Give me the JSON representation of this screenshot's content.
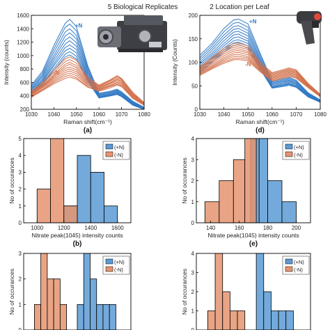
{
  "figure": {
    "title_left": "5 Biological Replicates",
    "title_right": "2 Location per Leaf"
  },
  "colors": {
    "plus_n": "#2f78c4",
    "minus_n": "#d2704a",
    "plus_n_bar": "#5b9bd5",
    "minus_n_bar": "#e59470",
    "overlap_bar": "#8c5a4f"
  },
  "icons": [
    "spectrometer-icon",
    "handheld-probe-icon"
  ],
  "chart_data": [
    {
      "id": "a",
      "type": "line",
      "panel_label": "(a)",
      "xlabel": "Raman shift(cm⁻¹)",
      "ylabel": "Intensity (counts)",
      "xlim": [
        1030,
        1080
      ],
      "ylim": [
        200,
        1600
      ],
      "xticks": [
        1030,
        1040,
        1050,
        1060,
        1070,
        1080
      ],
      "yticks": [
        200,
        400,
        600,
        800,
        1000,
        1200,
        1400,
        1600
      ],
      "annotations": [
        {
          "text": "+N",
          "x": 1051,
          "y": 1420,
          "series": "+N"
        },
        {
          "text": "-N",
          "x": 1041,
          "y": 720,
          "series": "-N"
        }
      ],
      "x": [
        1030,
        1035,
        1040,
        1045,
        1047,
        1050,
        1055,
        1060,
        1065,
        1068,
        1070,
        1075,
        1080
      ],
      "series": [
        {
          "group": "+N",
          "values": [
            560,
            770,
            1150,
            1480,
            1540,
            1430,
            850,
            440,
            470,
            500,
            460,
            320,
            230
          ]
        },
        {
          "group": "+N",
          "values": [
            540,
            740,
            1100,
            1420,
            1470,
            1370,
            820,
            430,
            460,
            490,
            450,
            310,
            220
          ]
        },
        {
          "group": "+N",
          "values": [
            520,
            710,
            1050,
            1350,
            1400,
            1300,
            790,
            420,
            450,
            480,
            440,
            300,
            220
          ]
        },
        {
          "group": "+N",
          "values": [
            500,
            690,
            1000,
            1290,
            1340,
            1250,
            760,
            410,
            440,
            470,
            430,
            300,
            210
          ]
        },
        {
          "group": "+N",
          "values": [
            490,
            660,
            960,
            1230,
            1280,
            1190,
            730,
            400,
            430,
            460,
            420,
            290,
            210
          ]
        },
        {
          "group": "+N",
          "values": [
            470,
            640,
            920,
            1170,
            1220,
            1140,
            700,
            390,
            420,
            450,
            410,
            280,
            210
          ]
        },
        {
          "group": "+N",
          "values": [
            460,
            620,
            880,
            1120,
            1160,
            1090,
            680,
            380,
            410,
            440,
            400,
            280,
            200
          ]
        },
        {
          "group": "+N",
          "values": [
            450,
            600,
            850,
            1070,
            1110,
            1040,
            660,
            380,
            410,
            440,
            400,
            270,
            200
          ]
        },
        {
          "group": "+N",
          "values": [
            440,
            580,
            810,
            1020,
            1060,
            990,
            640,
            370,
            400,
            430,
            390,
            270,
            200
          ]
        },
        {
          "group": "+N",
          "values": [
            430,
            570,
            780,
            980,
            1010,
            950,
            620,
            370,
            400,
            420,
            390,
            260,
            200
          ]
        },
        {
          "group": "-N",
          "values": [
            470,
            600,
            780,
            950,
            980,
            930,
            680,
            560,
            640,
            700,
            660,
            450,
            300
          ]
        },
        {
          "group": "-N",
          "values": [
            460,
            580,
            750,
            910,
            940,
            890,
            660,
            550,
            630,
            690,
            650,
            440,
            300
          ]
        },
        {
          "group": "-N",
          "values": [
            450,
            560,
            720,
            870,
            900,
            850,
            640,
            540,
            620,
            670,
            640,
            430,
            290
          ]
        },
        {
          "group": "-N",
          "values": [
            440,
            550,
            700,
            840,
            870,
            820,
            620,
            530,
            600,
            650,
            620,
            420,
            290
          ]
        },
        {
          "group": "-N",
          "values": [
            430,
            540,
            680,
            810,
            830,
            790,
            600,
            520,
            590,
            640,
            610,
            410,
            280
          ]
        },
        {
          "group": "-N",
          "values": [
            420,
            530,
            660,
            780,
            800,
            760,
            590,
            510,
            580,
            620,
            590,
            400,
            280
          ]
        },
        {
          "group": "-N",
          "values": [
            410,
            520,
            640,
            750,
            770,
            730,
            570,
            500,
            560,
            600,
            580,
            390,
            270
          ]
        },
        {
          "group": "-N",
          "values": [
            400,
            500,
            620,
            720,
            740,
            700,
            560,
            490,
            550,
            590,
            560,
            380,
            270
          ]
        },
        {
          "group": "-N",
          "values": [
            390,
            490,
            600,
            690,
            710,
            670,
            540,
            480,
            540,
            570,
            550,
            370,
            260
          ]
        },
        {
          "group": "-N",
          "values": [
            380,
            480,
            580,
            660,
            680,
            650,
            530,
            470,
            520,
            560,
            540,
            360,
            260
          ]
        }
      ]
    },
    {
      "id": "d",
      "type": "line",
      "panel_label": "(d)",
      "xlabel": "Raman shift(cm⁻¹)",
      "ylabel": "Intensity (Counts)",
      "xlim": [
        1030,
        1080
      ],
      "ylim": [
        0,
        200
      ],
      "xticks": [
        1030,
        1040,
        1050,
        1060,
        1070,
        1080
      ],
      "yticks": [
        0,
        50,
        100,
        150,
        200
      ],
      "annotations": [
        {
          "text": "+N",
          "x": 1052,
          "y": 183,
          "series": "+N"
        },
        {
          "text": "-N",
          "x": 1050,
          "y": 92,
          "series": "-N"
        }
      ],
      "x": [
        1030,
        1035,
        1040,
        1044,
        1046,
        1050,
        1055,
        1060,
        1065,
        1067,
        1070,
        1075,
        1080
      ],
      "series": [
        {
          "group": "+N",
          "values": [
            115,
            140,
            172,
            190,
            192,
            182,
            120,
            60,
            65,
            68,
            62,
            35,
            20
          ]
        },
        {
          "group": "+N",
          "values": [
            110,
            135,
            165,
            183,
            185,
            175,
            115,
            58,
            63,
            66,
            60,
            34,
            19
          ]
        },
        {
          "group": "+N",
          "values": [
            105,
            130,
            158,
            176,
            178,
            168,
            110,
            56,
            61,
            64,
            58,
            33,
            18
          ]
        },
        {
          "group": "+N",
          "values": [
            100,
            125,
            152,
            170,
            172,
            162,
            106,
            54,
            59,
            62,
            56,
            32,
            18
          ]
        },
        {
          "group": "+N",
          "values": [
            96,
            120,
            146,
            164,
            166,
            156,
            102,
            52,
            57,
            60,
            54,
            31,
            17
          ]
        },
        {
          "group": "+N",
          "values": [
            92,
            116,
            140,
            158,
            160,
            150,
            98,
            50,
            55,
            58,
            52,
            30,
            17
          ]
        },
        {
          "group": "+N",
          "values": [
            88,
            112,
            135,
            152,
            154,
            145,
            95,
            48,
            53,
            56,
            50,
            29,
            16
          ]
        },
        {
          "group": "+N",
          "values": [
            84,
            108,
            130,
            146,
            148,
            140,
            92,
            47,
            52,
            54,
            49,
            28,
            16
          ]
        },
        {
          "group": "+N",
          "values": [
            80,
            104,
            126,
            141,
            143,
            135,
            89,
            46,
            50,
            53,
            48,
            27,
            15
          ]
        },
        {
          "group": "+N",
          "values": [
            76,
            100,
            122,
            136,
            138,
            130,
            86,
            45,
            49,
            51,
            47,
            26,
            15
          ]
        },
        {
          "group": "-N",
          "values": [
            90,
            110,
            130,
            140,
            141,
            135,
            100,
            78,
            85,
            88,
            84,
            55,
            32
          ]
        },
        {
          "group": "-N",
          "values": [
            88,
            107,
            126,
            136,
            137,
            131,
            97,
            76,
            83,
            86,
            82,
            54,
            31
          ]
        },
        {
          "group": "-N",
          "values": [
            86,
            104,
            122,
            132,
            133,
            127,
            94,
            74,
            81,
            84,
            80,
            53,
            30
          ]
        },
        {
          "group": "-N",
          "values": [
            84,
            101,
            118,
            128,
            129,
            123,
            92,
            72,
            79,
            82,
            78,
            52,
            30
          ]
        },
        {
          "group": "-N",
          "values": [
            82,
            98,
            114,
            124,
            125,
            120,
            90,
            70,
            77,
            80,
            76,
            51,
            29
          ]
        },
        {
          "group": "-N",
          "values": [
            80,
            95,
            110,
            120,
            121,
            116,
            88,
            68,
            75,
            78,
            74,
            50,
            29
          ]
        },
        {
          "group": "-N",
          "values": [
            78,
            92,
            107,
            116,
            117,
            112,
            86,
            66,
            73,
            76,
            72,
            49,
            28
          ]
        },
        {
          "group": "-N",
          "values": [
            76,
            90,
            104,
            112,
            113,
            109,
            84,
            64,
            71,
            74,
            70,
            48,
            28
          ]
        },
        {
          "group": "-N",
          "values": [
            74,
            88,
            101,
            108,
            109,
            106,
            82,
            62,
            69,
            72,
            68,
            47,
            27
          ]
        },
        {
          "group": "-N",
          "values": [
            72,
            86,
            98,
            105,
            106,
            103,
            80,
            60,
            67,
            70,
            66,
            46,
            27
          ]
        }
      ]
    },
    {
      "id": "b",
      "type": "bar",
      "panel_label": "(b)",
      "xlabel": "Nitrate peak(1045) intensity counts",
      "ylabel": "No of occurances",
      "xlim": [
        900,
        1700
      ],
      "ylim": [
        0,
        5
      ],
      "xticks": [
        1000,
        1200,
        1400,
        1600
      ],
      "yticks": [
        0,
        1,
        2,
        3,
        4,
        5
      ],
      "legend": {
        "entries": [
          "(+N)",
          "(-N)"
        ],
        "position": "top-right"
      },
      "series": [
        {
          "name": "(+N)",
          "bins": [
            [
              1200,
              1300,
              1
            ],
            [
              1300,
              1400,
              4
            ],
            [
              1400,
              1500,
              3
            ],
            [
              1500,
              1600,
              1
            ]
          ]
        },
        {
          "name": "(-N)",
          "bins": [
            [
              1000,
              1100,
              2
            ],
            [
              1100,
              1200,
              5
            ],
            [
              1200,
              1300,
              1
            ]
          ]
        }
      ]
    },
    {
      "id": "e",
      "type": "bar",
      "panel_label": "(e)",
      "xlabel": "Nitrate peak(1045) intensity counts",
      "ylabel": "No of occurances",
      "xlim": [
        130,
        210
      ],
      "ylim": [
        0,
        4
      ],
      "xticks": [
        140,
        160,
        180,
        200
      ],
      "yticks": [
        0,
        1,
        2,
        3,
        4
      ],
      "legend": {
        "entries": [
          "(+N)",
          "(-N)"
        ],
        "position": "top-right"
      },
      "series": [
        {
          "name": "(+N)",
          "bins": [
            [
              168,
              174,
              4
            ],
            [
              174,
              180,
              4
            ],
            [
              180,
              190,
              2
            ],
            [
              190,
              200,
              1
            ]
          ]
        },
        {
          "name": "(-N)",
          "bins": [
            [
              136,
              146,
              1
            ],
            [
              146,
              156,
              2
            ],
            [
              156,
              164,
              3
            ],
            [
              164,
              172,
              4
            ]
          ]
        }
      ]
    },
    {
      "id": "c",
      "type": "bar",
      "panel_label": "",
      "xlabel": "",
      "ylabel": "No of occurances",
      "xlim": [
        0,
        20
      ],
      "ylim": [
        0,
        3
      ],
      "xticks": [],
      "yticks": [
        0,
        1,
        2,
        3
      ],
      "legend": {
        "entries": [
          "(+N)",
          "(-N)"
        ],
        "position": "top-right"
      },
      "series": [
        {
          "name": "(+N)",
          "bins": [
            [
              10,
              11.2,
              1
            ],
            [
              11.2,
              12.4,
              3
            ],
            [
              12.4,
              13.6,
              2
            ],
            [
              13.6,
              14.8,
              1
            ],
            [
              14.8,
              16,
              1
            ],
            [
              16,
              17.2,
              1
            ]
          ]
        },
        {
          "name": "(-N)",
          "bins": [
            [
              2,
              3.2,
              1
            ],
            [
              3.2,
              4.4,
              3
            ],
            [
              4.4,
              5.6,
              2
            ],
            [
              5.6,
              6.8,
              2
            ],
            [
              6.8,
              8,
              1
            ]
          ]
        }
      ]
    },
    {
      "id": "f",
      "type": "bar",
      "panel_label": "",
      "xlabel": "",
      "ylabel": "No of occurances",
      "xlim": [
        0,
        20
      ],
      "ylim": [
        0,
        4
      ],
      "xticks": [],
      "yticks": [
        0,
        1,
        2,
        3,
        4
      ],
      "legend": {
        "entries": [
          "(+N)",
          "(-N)"
        ],
        "position": "top-right"
      },
      "series": [
        {
          "name": "(+N)",
          "bins": [
            [
              10.5,
              11.8,
              4
            ],
            [
              11.8,
              13.1,
              2
            ],
            [
              13.1,
              14.4,
              1
            ],
            [
              14.4,
              15.7,
              1
            ],
            [
              15.7,
              17,
              1
            ]
          ]
        },
        {
          "name": "(-N)",
          "bins": [
            [
              2,
              3.3,
              1
            ],
            [
              3.3,
              4.6,
              4
            ],
            [
              4.6,
              5.9,
              2
            ],
            [
              5.9,
              7.2,
              1
            ],
            [
              7.2,
              8.5,
              1
            ]
          ]
        }
      ]
    }
  ]
}
